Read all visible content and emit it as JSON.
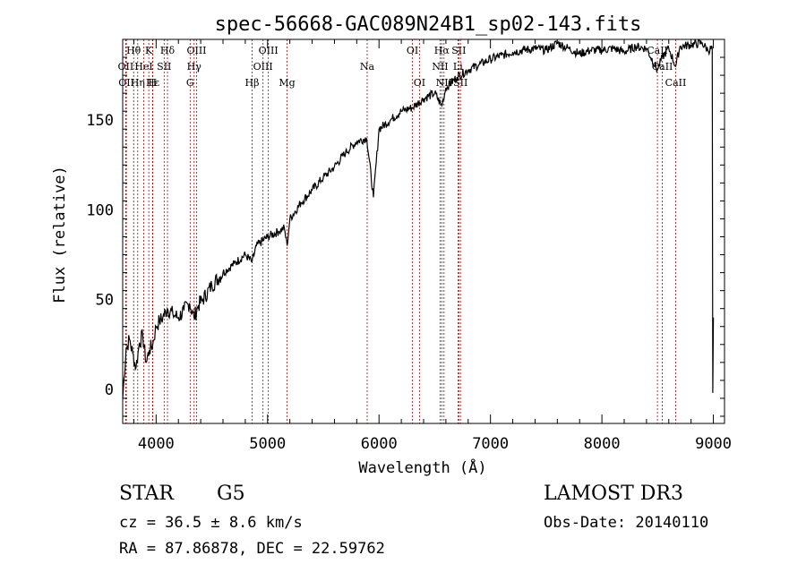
{
  "chart_data": {
    "type": "line",
    "title": "spec-56668-GAC089N24B1_sp02-143.fits",
    "xlabel": "Wavelength (Å)",
    "ylabel": "Flux (relative)",
    "xlim": [
      3700,
      9100
    ],
    "ylim": [
      -19,
      195
    ],
    "xticks": [
      4000,
      5000,
      6000,
      7000,
      8000,
      9000
    ],
    "yticks": [
      0,
      50,
      100,
      150
    ],
    "grid": false,
    "series": [
      {
        "name": "flux",
        "x": [
          3700,
          3730,
          3760,
          3790,
          3820,
          3850,
          3880,
          3910,
          3940,
          3970,
          4000,
          4030,
          4060,
          4100,
          4150,
          4200,
          4250,
          4300,
          4340,
          4380,
          4420,
          4500,
          4600,
          4700,
          4800,
          4861,
          4900,
          5000,
          5100,
          5150,
          5175,
          5200,
          5300,
          5400,
          5500,
          5600,
          5700,
          5800,
          5890,
          5950,
          6000,
          6100,
          6200,
          6300,
          6400,
          6500,
          6563,
          6600,
          6700,
          6800,
          6900,
          7000,
          7100,
          7200,
          7300,
          7400,
          7500,
          7600,
          7700,
          7800,
          7900,
          8000,
          8100,
          8200,
          8300,
          8400,
          8498,
          8542,
          8600,
          8662,
          8700,
          8800,
          8900,
          8950,
          8990,
          8995,
          9000
        ],
        "y": [
          -5,
          22,
          28,
          20,
          12,
          26,
          30,
          15,
          22,
          25,
          35,
          38,
          40,
          45,
          42,
          40,
          44,
          48,
          40,
          47,
          50,
          58,
          65,
          70,
          75,
          71,
          80,
          85,
          88,
          90,
          80,
          95,
          104,
          111,
          118,
          124,
          132,
          138,
          140,
          107,
          145,
          150,
          155,
          157,
          162,
          165,
          158,
          168,
          174,
          178,
          181,
          184,
          186,
          188,
          189,
          190,
          189,
          193,
          190,
          187,
          189,
          189,
          190,
          188,
          191,
          190,
          178,
          185,
          190,
          180,
          191,
          192,
          193,
          189,
          190,
          -2,
          40
        ]
      }
    ],
    "lines": [
      {
        "label": "Hθ",
        "x": 3798,
        "row": 0
      },
      {
        "label": "OII",
        "x": 3727,
        "row": 1
      },
      {
        "label": "OII",
        "x": 3733,
        "row": 2
      },
      {
        "label": "K",
        "x": 3934,
        "row": 0
      },
      {
        "label": "HeI",
        "x": 3889,
        "row": 1
      },
      {
        "label": "Hε",
        "x": 3970,
        "row": 2
      },
      {
        "label": "Hη",
        "x": 3835,
        "row": 2
      },
      {
        "label": "H",
        "x": 3968,
        "row": 2
      },
      {
        "label": "Hδ",
        "x": 4102,
        "row": 0
      },
      {
        "label": "SII",
        "x": 4072,
        "row": 1
      },
      {
        "label": "OIII",
        "x": 4363,
        "row": 0
      },
      {
        "label": "Hγ",
        "x": 4341,
        "row": 1
      },
      {
        "label": "G",
        "x": 4305,
        "row": 2
      },
      {
        "label": "OIII",
        "x": 5007,
        "row": 0
      },
      {
        "label": "OIII",
        "x": 4959,
        "row": 1
      },
      {
        "label": "Hβ",
        "x": 4861,
        "row": 2
      },
      {
        "label": "Mg",
        "x": 5175,
        "row": 2
      },
      {
        "label": "Na",
        "x": 5894,
        "row": 1
      },
      {
        "label": "OI",
        "x": 6300,
        "row": 0
      },
      {
        "label": "OI",
        "x": 6363,
        "row": 2
      },
      {
        "label": "Hα",
        "x": 6563,
        "row": 0
      },
      {
        "label": "SII",
        "x": 6716,
        "row": 0
      },
      {
        "label": "NII",
        "x": 6548,
        "row": 1
      },
      {
        "label": "Li",
        "x": 6708,
        "row": 1
      },
      {
        "label": "NII",
        "x": 6583,
        "row": 2
      },
      {
        "label": "SII",
        "x": 6731,
        "row": 2
      },
      {
        "label": "CaII",
        "x": 8498,
        "row": 0
      },
      {
        "label": "CaII",
        "x": 8542,
        "row": 1
      },
      {
        "label": "CaII",
        "x": 8662,
        "row": 2
      }
    ],
    "line_color": "#b00000",
    "curve_color": "#000000"
  },
  "info": {
    "object_class": "STAR",
    "subclass": "G5",
    "survey": "LAMOST DR3",
    "cz": "cz = 36.5 ± 8.6 km/s",
    "obs_date": "Obs-Date: 20140110",
    "coords": "RA =  87.86878, DEC =  22.59762"
  }
}
